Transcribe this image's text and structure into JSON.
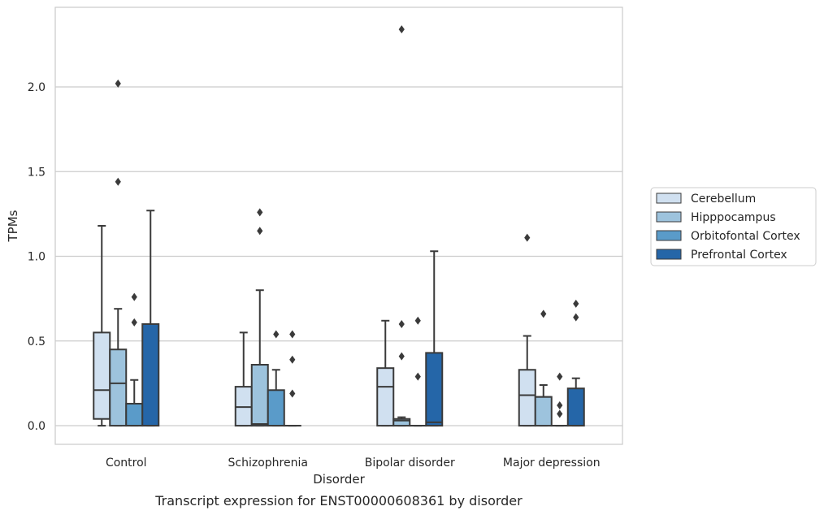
{
  "chart_data": {
    "type": "boxplot",
    "title": "",
    "caption": "Transcript expression for ENST00000608361 by disorder",
    "xlabel": "Disorder",
    "ylabel": "TPMs",
    "ylim": [
      -0.11,
      2.47
    ],
    "yticks": [
      0.0,
      0.5,
      1.0,
      1.5,
      2.0
    ],
    "ytick_labels": [
      "0.0",
      "0.5",
      "1.0",
      "1.5",
      "2.0"
    ],
    "grid": "horizontal",
    "legend_position": "right",
    "categories": [
      "Control",
      "Schizophrenia",
      "Bipolar disorder",
      "Major depression"
    ],
    "series": [
      {
        "name": "Cerebellum",
        "color": "#d0e0f0",
        "boxes": [
          {
            "q1": 0.04,
            "median": 0.21,
            "q3": 0.55,
            "whisker_low": 0.0,
            "whisker_high": 1.18,
            "outliers": []
          },
          {
            "q1": 0.0,
            "median": 0.11,
            "q3": 0.23,
            "whisker_low": 0.0,
            "whisker_high": 0.55,
            "outliers": []
          },
          {
            "q1": 0.0,
            "median": 0.23,
            "q3": 0.34,
            "whisker_low": 0.0,
            "whisker_high": 0.62,
            "outliers": []
          },
          {
            "q1": 0.0,
            "median": 0.18,
            "q3": 0.33,
            "whisker_low": 0.0,
            "whisker_high": 0.53,
            "outliers": [
              1.11
            ]
          }
        ]
      },
      {
        "name": "Hipppocampus",
        "color": "#9dc3dd",
        "boxes": [
          {
            "q1": 0.0,
            "median": 0.25,
            "q3": 0.45,
            "whisker_low": 0.0,
            "whisker_high": 0.69,
            "outliers": [
              1.44,
              2.02
            ]
          },
          {
            "q1": 0.0,
            "median": 0.01,
            "q3": 0.36,
            "whisker_low": 0.0,
            "whisker_high": 0.8,
            "outliers": [
              1.15,
              1.26
            ]
          },
          {
            "q1": 0.0,
            "median": 0.03,
            "q3": 0.04,
            "whisker_low": 0.0,
            "whisker_high": 0.05,
            "outliers": [
              0.41,
              0.6,
              2.34
            ]
          },
          {
            "q1": 0.0,
            "median": 0.17,
            "q3": 0.17,
            "whisker_low": 0.0,
            "whisker_high": 0.24,
            "outliers": [
              0.66
            ]
          }
        ]
      },
      {
        "name": "Orbitofontal Cortex",
        "color": "#5a9bc9",
        "boxes": [
          {
            "q1": 0.0,
            "median": 0.0,
            "q3": 0.13,
            "whisker_low": 0.0,
            "whisker_high": 0.27,
            "outliers": [
              0.61,
              0.76
            ]
          },
          {
            "q1": 0.0,
            "median": 0.0,
            "q3": 0.21,
            "whisker_low": 0.0,
            "whisker_high": 0.33,
            "outliers": [
              0.54
            ]
          },
          {
            "q1": 0.0,
            "median": 0.0,
            "q3": 0.0,
            "whisker_low": 0.0,
            "whisker_high": 0.0,
            "outliers": [
              0.29,
              0.62
            ]
          },
          {
            "q1": 0.0,
            "median": 0.0,
            "q3": 0.0,
            "whisker_low": 0.0,
            "whisker_high": 0.0,
            "outliers": [
              0.07,
              0.12,
              0.29
            ]
          }
        ]
      },
      {
        "name": "Prefrontal Cortex",
        "color": "#2566a8",
        "boxes": [
          {
            "q1": 0.0,
            "median": 0.0,
            "q3": 0.6,
            "whisker_low": 0.0,
            "whisker_high": 1.27,
            "outliers": []
          },
          {
            "q1": 0.0,
            "median": 0.0,
            "q3": 0.0,
            "whisker_low": 0.0,
            "whisker_high": 0.0,
            "outliers": [
              0.19,
              0.39,
              0.54
            ]
          },
          {
            "q1": 0.0,
            "median": 0.02,
            "q3": 0.43,
            "whisker_low": 0.0,
            "whisker_high": 1.03,
            "outliers": []
          },
          {
            "q1": 0.0,
            "median": 0.0,
            "q3": 0.22,
            "whisker_low": 0.0,
            "whisker_high": 0.28,
            "outliers": [
              0.64,
              0.72
            ]
          }
        ]
      }
    ]
  }
}
